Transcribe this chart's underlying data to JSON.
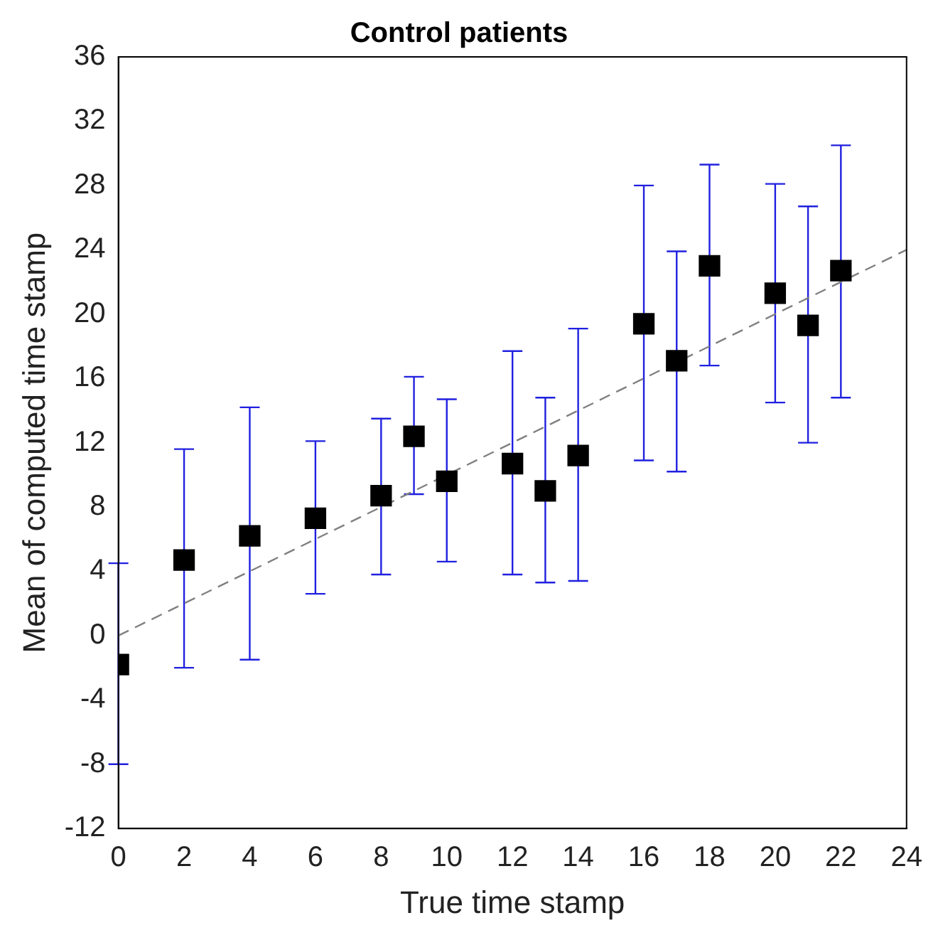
{
  "chart_data": {
    "type": "scatter",
    "title": "Control patients",
    "xlabel": "True time stamp",
    "ylabel": "Mean of computed time stamp",
    "xlim": [
      0,
      24
    ],
    "xticks": [
      0,
      2,
      4,
      6,
      8,
      10,
      12,
      14,
      16,
      18,
      20,
      22,
      24
    ],
    "ylim": [
      -12,
      36
    ],
    "yticks": [
      -12,
      -8,
      -4,
      0,
      4,
      8,
      12,
      16,
      20,
      24,
      28,
      32,
      36
    ],
    "grid": false,
    "legend": false,
    "marker": "square",
    "series": [
      {
        "color": "#000000",
        "x": [
          0,
          2,
          4,
          6,
          8,
          9,
          10,
          12,
          13,
          14,
          16,
          17,
          18,
          20,
          21,
          22
        ],
        "values": [
          -1.8,
          4.7,
          6.2,
          7.3,
          8.7,
          12.4,
          9.6,
          10.7,
          9.0,
          11.2,
          19.4,
          17.1,
          23.0,
          21.3,
          19.3,
          22.7
        ],
        "errors": [
          [
            -8,
            4.5
          ],
          [
            -2,
            11.6
          ],
          [
            -1.5,
            14.2
          ],
          [
            2.6,
            12.1
          ],
          [
            3.8,
            13.5
          ],
          [
            8.8,
            16.1
          ],
          [
            4.6,
            14.7
          ],
          [
            3.8,
            17.7
          ],
          [
            3.3,
            14.8
          ],
          [
            3.4,
            19.1
          ],
          [
            10.9,
            28.0
          ],
          [
            10.2,
            23.9
          ],
          [
            16.8,
            29.3
          ],
          [
            14.5,
            28.1
          ],
          [
            12.0,
            26.7
          ],
          [
            14.8,
            30.5
          ]
        ]
      },
      {
        "type": "line",
        "color": "#808080",
        "line_style": "dashed",
        "marker": "none",
        "x": [
          0,
          24
        ],
        "values": [
          0,
          24
        ]
      }
    ]
  }
}
